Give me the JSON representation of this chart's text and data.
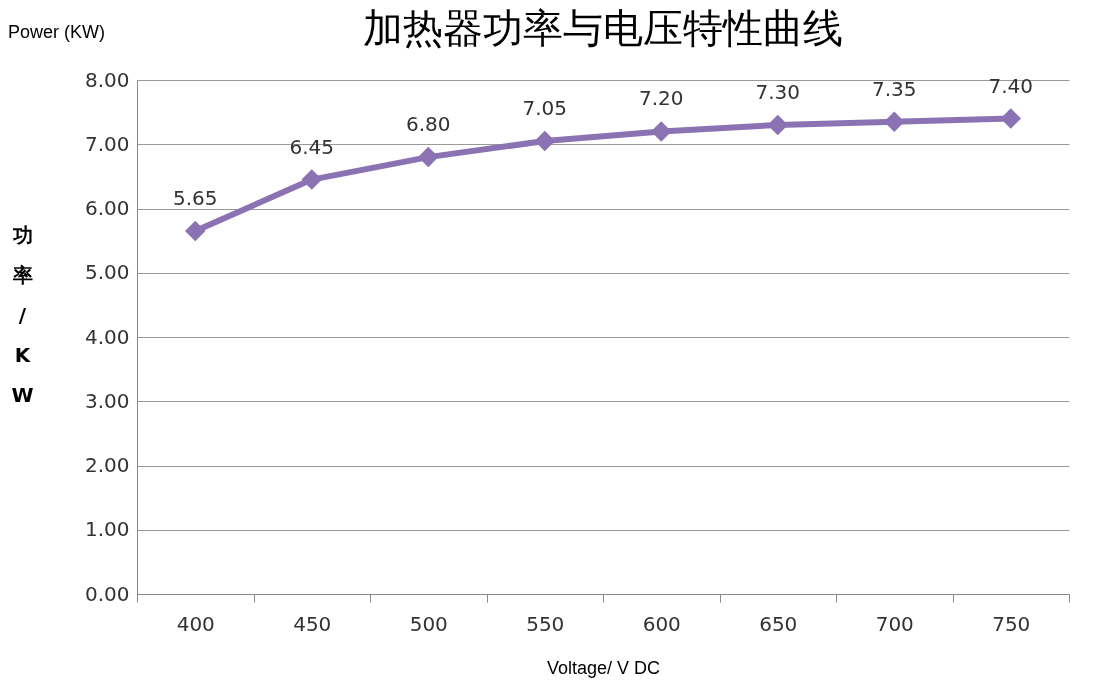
{
  "chart_data": {
    "type": "line",
    "title": "加热器功率与电压特性曲线",
    "xlabel": "Voltage/ V DC",
    "ylabel": "功率/KW",
    "annotations": [
      "Power (KW)"
    ],
    "categories": [
      "400",
      "450",
      "500",
      "550",
      "600",
      "650",
      "700",
      "750"
    ],
    "series": [
      {
        "color": "#8b72b3",
        "values": [
          5.65,
          6.45,
          6.8,
          7.05,
          7.2,
          7.3,
          7.35,
          7.4
        ],
        "value_labels": [
          "5.65",
          "6.45",
          "6.80",
          "7.05",
          "7.20",
          "7.30",
          "7.35",
          "7.40"
        ]
      }
    ],
    "ylim": [
      0,
      8
    ],
    "yticks": [
      {
        "value": 0,
        "label": "0.00"
      },
      {
        "value": 1,
        "label": "1.00"
      },
      {
        "value": 2,
        "label": "2.00"
      },
      {
        "value": 3,
        "label": "3.00"
      },
      {
        "value": 4,
        "label": "4.00"
      },
      {
        "value": 5,
        "label": "5.00"
      },
      {
        "value": 6,
        "label": "6.00"
      },
      {
        "value": 7,
        "label": "7.00"
      },
      {
        "value": 8,
        "label": "8.00"
      }
    ],
    "grid": "y",
    "marker": "diamond",
    "line_style": "solid"
  }
}
